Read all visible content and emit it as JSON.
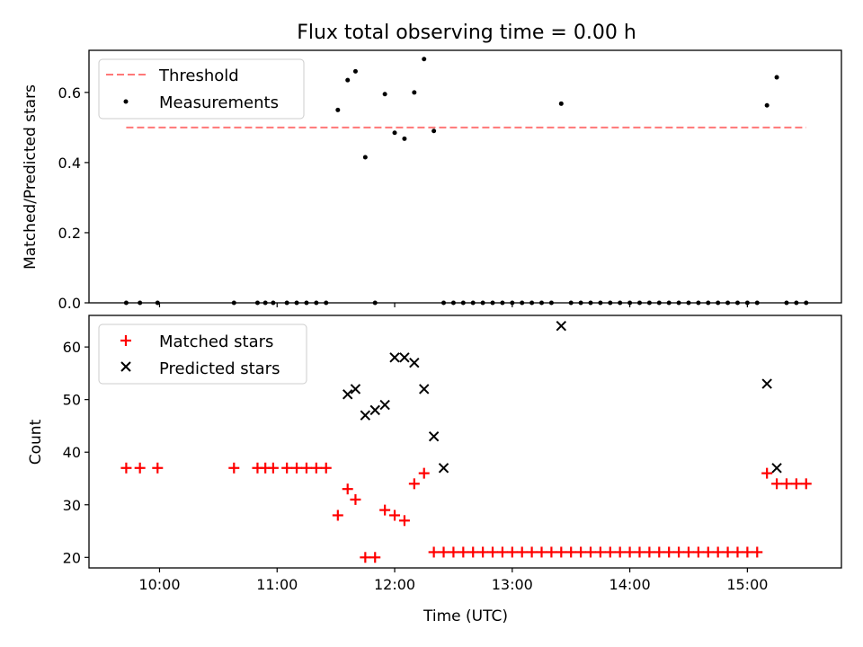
{
  "chart_data": [
    {
      "type": "scatter",
      "title": "Flux total observing time = 0.00 h",
      "xlabel": "",
      "ylabel": "Matched/Predicted stars",
      "xlim": [
        "09:24",
        "15:48"
      ],
      "ylim": [
        0,
        0.72
      ],
      "x_ticks": [
        "10:00",
        "11:00",
        "12:00",
        "13:00",
        "14:00",
        "15:00"
      ],
      "y_ticks": [
        "0.0",
        "0.2",
        "0.4",
        "0.6"
      ],
      "legend": {
        "placement": "top-left",
        "entries": [
          "Threshold",
          "Measurements"
        ]
      },
      "threshold": {
        "name": "Threshold",
        "color": "#ff7777",
        "value": 0.5,
        "x_range": [
          "09:43",
          "15:30"
        ]
      },
      "measurements": {
        "name": "Measurements",
        "color": "#000000",
        "x": [
          "09:43",
          "09:50",
          "09:59",
          "10:38",
          "10:50",
          "10:54",
          "10:58",
          "11:05",
          "11:10",
          "11:15",
          "11:20",
          "11:25",
          "11:31",
          "11:36",
          "11:40",
          "11:45",
          "11:50",
          "11:55",
          "12:00",
          "12:05",
          "12:10",
          "12:15",
          "12:20",
          "12:25",
          "12:30",
          "12:35",
          "12:40",
          "12:45",
          "12:50",
          "12:55",
          "13:00",
          "13:05",
          "13:10",
          "13:15",
          "13:20",
          "13:25",
          "13:30",
          "13:35",
          "13:40",
          "13:45",
          "13:50",
          "13:55",
          "14:00",
          "14:05",
          "14:10",
          "14:15",
          "14:20",
          "14:25",
          "14:30",
          "14:35",
          "14:40",
          "14:45",
          "14:50",
          "14:55",
          "15:00",
          "15:05",
          "15:10",
          "15:15",
          "15:20",
          "15:25",
          "15:30"
        ],
        "y": [
          0,
          0,
          0,
          0,
          0,
          0,
          0,
          0,
          0,
          0,
          0,
          0,
          0.55,
          0.635,
          0.66,
          0.415,
          0,
          0.595,
          0.485,
          0.468,
          0.6,
          0.695,
          0.49,
          0,
          0,
          0,
          0,
          0,
          0,
          0,
          0,
          0,
          0,
          0,
          0,
          0.568,
          0,
          0,
          0,
          0,
          0,
          0,
          0,
          0,
          0,
          0,
          0,
          0,
          0,
          0,
          0,
          0,
          0,
          0,
          0,
          0,
          0.563,
          0.643,
          0,
          0,
          0
        ]
      }
    },
    {
      "type": "scatter",
      "title": "",
      "xlabel": "Time (UTC)",
      "ylabel": "Count",
      "xlim": [
        "09:24",
        "15:48"
      ],
      "ylim": [
        18,
        66
      ],
      "x_ticks": [
        "10:00",
        "11:00",
        "12:00",
        "13:00",
        "14:00",
        "15:00"
      ],
      "y_ticks": [
        "20",
        "30",
        "40",
        "50",
        "60"
      ],
      "legend": {
        "placement": "top-left",
        "entries": [
          "Matched stars",
          "Predicted stars"
        ]
      },
      "series": [
        {
          "name": "Matched stars",
          "color": "#ff0000",
          "marker": "plus",
          "x": [
            "09:43",
            "09:50",
            "09:59",
            "10:38",
            "10:50",
            "10:54",
            "10:58",
            "11:05",
            "11:10",
            "11:15",
            "11:20",
            "11:25",
            "11:31",
            "11:36",
            "11:40",
            "11:45",
            "11:50",
            "11:55",
            "12:00",
            "12:05",
            "12:10",
            "12:15",
            "12:20",
            "12:25",
            "12:30",
            "12:35",
            "12:40",
            "12:45",
            "12:50",
            "12:55",
            "13:00",
            "13:05",
            "13:10",
            "13:15",
            "13:20",
            "13:25",
            "13:30",
            "13:35",
            "13:40",
            "13:45",
            "13:50",
            "13:55",
            "14:00",
            "14:05",
            "14:10",
            "14:15",
            "14:20",
            "14:25",
            "14:30",
            "14:35",
            "14:40",
            "14:45",
            "14:50",
            "14:55",
            "15:00",
            "15:05",
            "15:10",
            "15:15",
            "15:20",
            "15:25",
            "15:30"
          ],
          "y": [
            37,
            37,
            37,
            37,
            37,
            37,
            37,
            37,
            37,
            37,
            37,
            37,
            28,
            33,
            31,
            20,
            20,
            29,
            28,
            27,
            34,
            36,
            21,
            21,
            21,
            21,
            21,
            21,
            21,
            21,
            21,
            21,
            21,
            21,
            21,
            21,
            21,
            21,
            21,
            21,
            21,
            21,
            21,
            21,
            21,
            21,
            21,
            21,
            21,
            21,
            21,
            21,
            21,
            21,
            21,
            21,
            36,
            34,
            34,
            34,
            34
          ]
        },
        {
          "name": "Predicted stars",
          "color": "#000000",
          "marker": "x",
          "x": [
            "11:36",
            "11:40",
            "11:45",
            "11:50",
            "11:55",
            "12:00",
            "12:05",
            "12:10",
            "12:15",
            "12:20",
            "12:25",
            "13:25",
            "15:10",
            "15:15"
          ],
          "y": [
            51,
            52,
            47,
            48,
            49,
            58,
            58,
            57,
            52,
            43,
            37,
            64,
            53,
            37
          ]
        }
      ]
    }
  ]
}
